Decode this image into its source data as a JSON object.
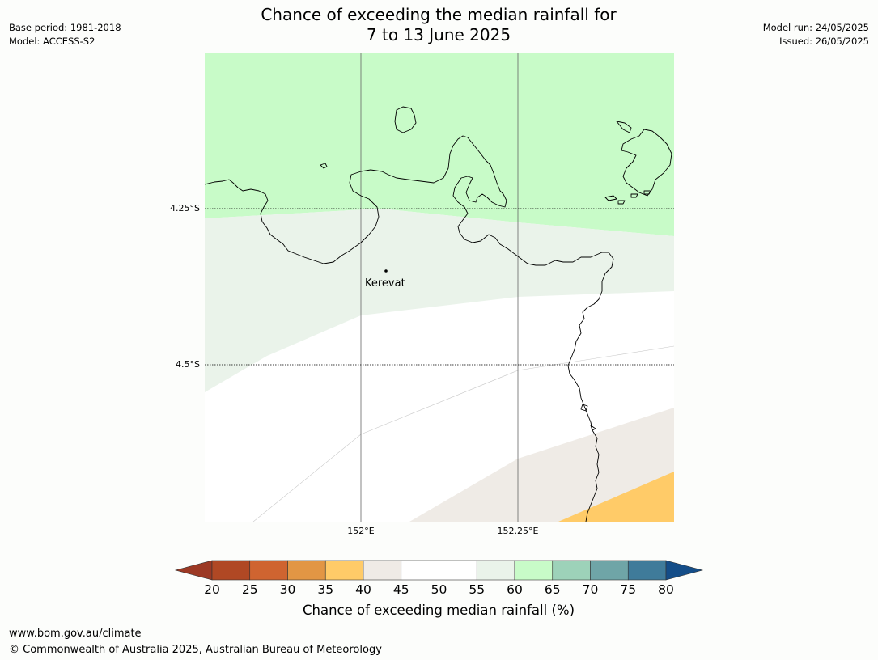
{
  "header": {
    "title_line1": "Chance of exceeding the median rainfall for",
    "title_line2": "7 to 13 June 2025",
    "base_period": "Base period: 1981-2018",
    "model": "Model: ACCESS-S2",
    "model_run": "Model run: 24/05/2025",
    "issued": "Issued: 26/05/2025"
  },
  "map": {
    "lat_labels": [
      "4.25°S",
      "4.5°S"
    ],
    "lon_labels": [
      "152°E",
      "152.25°E"
    ],
    "city": "Kerevat",
    "colors": {
      "c60_65": "#c8fbc8",
      "c55_60": "#eaf3ea",
      "c45_55": "#ffffff",
      "c40_45": "#efebe6",
      "c35_40": "#ffcb68",
      "coastline": "#000000",
      "gridline": "#666666"
    }
  },
  "colorbar": {
    "title": "Chance of exceeding median rainfall (%)",
    "ticks": [
      "20",
      "25",
      "30",
      "35",
      "40",
      "45",
      "50",
      "55",
      "60",
      "65",
      "70",
      "75",
      "80"
    ],
    "colors": [
      "#b04824",
      "#cf6430",
      "#e29644",
      "#ffcb68",
      "#efebe6",
      "#ffffff",
      "#ffffff",
      "#eaf3ea",
      "#c8fbc8",
      "#9dd2b9",
      "#6fa5a7",
      "#3f7b9a"
    ],
    "under_color": "#9c3924",
    "over_color": "#144d88"
  },
  "footer": {
    "url": "www.bom.gov.au/climate",
    "copyright": "© Commonwealth of Australia 2025, Australian Bureau of Meteorology"
  }
}
